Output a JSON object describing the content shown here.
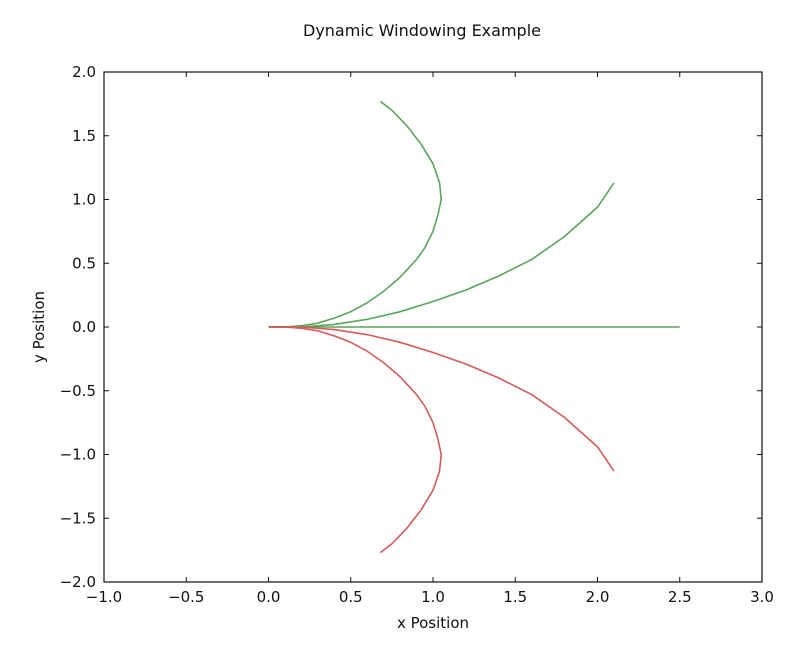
{
  "chart_data": {
    "type": "line",
    "title": "Dynamic Windowing Example",
    "xlabel": "x Position",
    "ylabel": "y Position",
    "xlim": [
      -1.0,
      3.0
    ],
    "ylim": [
      -2.0,
      2.0
    ],
    "x_ticks": [
      -1.0,
      -0.5,
      0.0,
      0.5,
      1.0,
      1.5,
      2.0,
      2.5,
      3.0
    ],
    "y_ticks": [
      -2.0,
      -1.5,
      -1.0,
      -0.5,
      0.0,
      0.5,
      1.0,
      1.5,
      2.0
    ],
    "x_tick_labels": [
      "−1.0",
      "−0.5",
      "0.0",
      "0.5",
      "1.0",
      "1.5",
      "2.0",
      "2.5",
      "3.0"
    ],
    "y_tick_labels": [
      "−2.0",
      "−1.5",
      "−1.0",
      "−0.5",
      "0.0",
      "0.5",
      "1.0",
      "1.5",
      "2.0"
    ],
    "grid": false,
    "legend": "none",
    "series": [
      {
        "color": "#5aa55a",
        "x": [
          0.0,
          0.1,
          0.2,
          0.3,
          0.4,
          0.5,
          0.6,
          0.7,
          0.8,
          0.9,
          0.95,
          1.0,
          1.03,
          1.05,
          1.04,
          1.0,
          0.93,
          0.84,
          0.75,
          0.68
        ],
        "y": [
          0.0,
          0.0,
          0.01,
          0.03,
          0.07,
          0.12,
          0.19,
          0.28,
          0.39,
          0.53,
          0.62,
          0.75,
          0.88,
          1.0,
          1.13,
          1.28,
          1.43,
          1.58,
          1.7,
          1.77
        ]
      },
      {
        "color": "#5aa55a",
        "x": [
          0.0,
          0.2,
          0.4,
          0.6,
          0.8,
          1.0,
          1.2,
          1.4,
          1.6,
          1.8,
          2.0,
          2.1
        ],
        "y": [
          0.0,
          0.0,
          0.02,
          0.06,
          0.12,
          0.2,
          0.29,
          0.4,
          0.53,
          0.71,
          0.94,
          1.13
        ]
      },
      {
        "color": "#5aa55a",
        "x": [
          0.0,
          2.5
        ],
        "y": [
          0.0,
          0.0
        ]
      },
      {
        "color": "#d65a5a",
        "x": [
          0.0,
          0.2,
          0.4,
          0.6,
          0.8,
          1.0,
          1.2,
          1.4,
          1.6,
          1.8,
          2.0,
          2.1
        ],
        "y": [
          0.0,
          0.0,
          -0.02,
          -0.06,
          -0.12,
          -0.2,
          -0.29,
          -0.4,
          -0.53,
          -0.71,
          -0.94,
          -1.13
        ]
      },
      {
        "color": "#d65a5a",
        "x": [
          0.0,
          0.1,
          0.2,
          0.3,
          0.4,
          0.5,
          0.6,
          0.7,
          0.8,
          0.9,
          0.95,
          1.0,
          1.03,
          1.05,
          1.04,
          1.0,
          0.93,
          0.84,
          0.75,
          0.68
        ],
        "y": [
          0.0,
          0.0,
          -0.01,
          -0.03,
          -0.07,
          -0.12,
          -0.19,
          -0.28,
          -0.39,
          -0.53,
          -0.62,
          -0.75,
          -0.88,
          -1.0,
          -1.13,
          -1.28,
          -1.43,
          -1.58,
          -1.7,
          -1.77
        ]
      }
    ]
  }
}
